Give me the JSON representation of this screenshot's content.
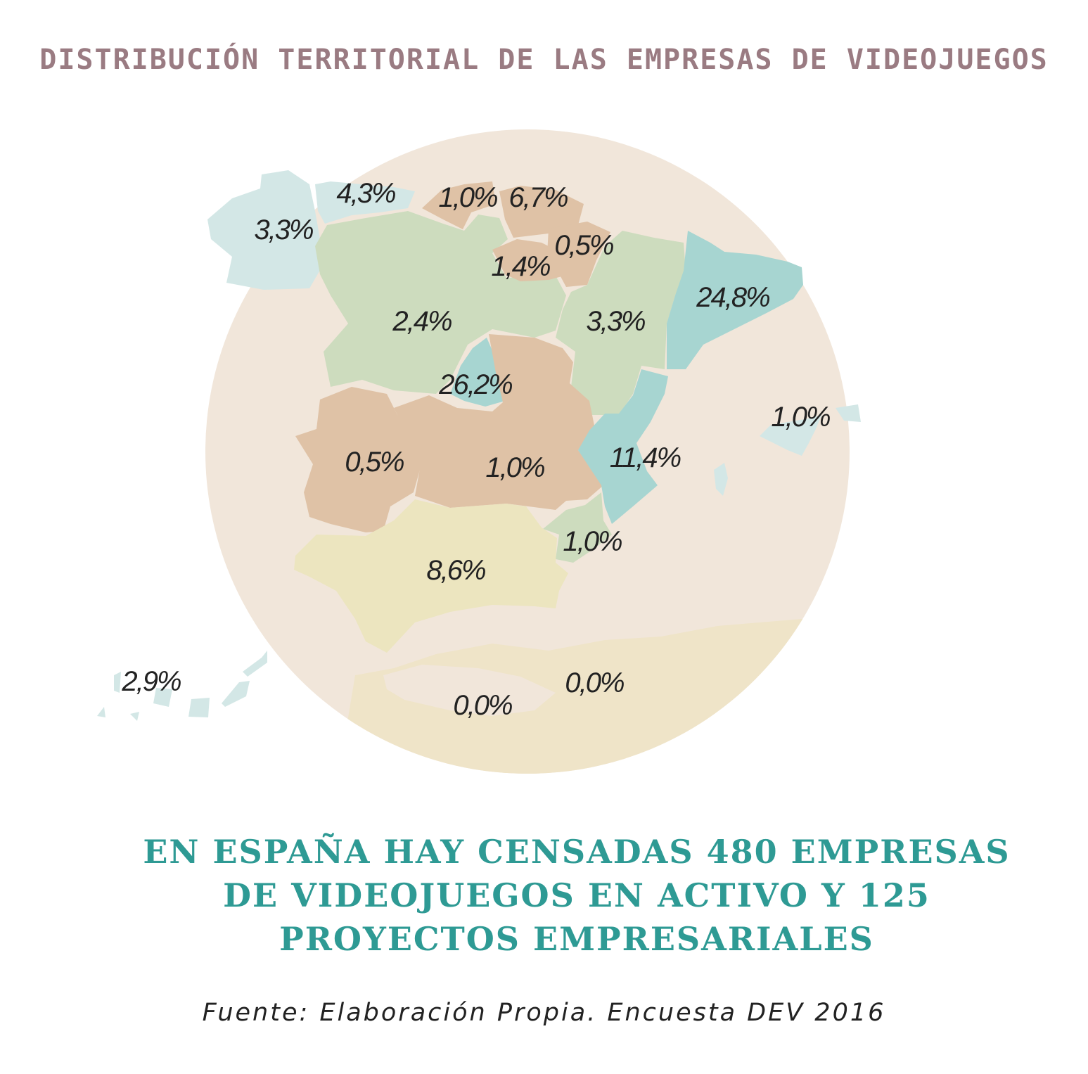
{
  "title": "DISTRIBUCIÓN TERRITORIAL DE LAS EMPRESAS DE VIDEOJUEGOS",
  "colors": {
    "background_circle": "#f1e6da",
    "sea_south": "#efe4c8",
    "cluster_blue": "#d3e7e6",
    "cluster_green": "#cddcbe",
    "cluster_brown": "#dfc2a6",
    "cluster_teal": "#a7d5d1",
    "cluster_yellow": "#ece5bf",
    "title": "#9a7b82",
    "headline": "#2e9a94",
    "label": "#222222"
  },
  "regions": [
    {
      "name": "Galicia",
      "value": "3,3%"
    },
    {
      "name": "Asturias",
      "value": "4,3%"
    },
    {
      "name": "Cantabria",
      "value": "1,0%"
    },
    {
      "name": "País Vasco",
      "value": "6,7%"
    },
    {
      "name": "Navarra",
      "value": "0,5%"
    },
    {
      "name": "La Rioja",
      "value": "1,4%"
    },
    {
      "name": "Castilla y León",
      "value": "2,4%"
    },
    {
      "name": "Aragón",
      "value": "3,3%"
    },
    {
      "name": "Cataluña",
      "value": "24,8%"
    },
    {
      "name": "Madrid",
      "value": "26,2%"
    },
    {
      "name": "Extremadura",
      "value": "0,5%"
    },
    {
      "name": "Castilla-La Mancha",
      "value": "1,0%"
    },
    {
      "name": "Comunidad Valenciana",
      "value": "11,4%"
    },
    {
      "name": "Islas Baleares",
      "value": "1,0%"
    },
    {
      "name": "Murcia",
      "value": "1,0%"
    },
    {
      "name": "Andalucía",
      "value": "8,6%"
    },
    {
      "name": "Canarias",
      "value": "2,9%"
    },
    {
      "name": "Ceuta",
      "value": "0,0%"
    },
    {
      "name": "Melilla",
      "value": "0,0%"
    }
  ],
  "headline": [
    "EN ESPAÑA HAY CENSADAS 480 EMPRESAS",
    "DE VIDEOJUEGOS EN ACTIVO Y 125",
    "PROYECTOS EMPRESARIALES"
  ],
  "source": "Fuente: Elaboración Propia. Encuesta DEV 2016"
}
